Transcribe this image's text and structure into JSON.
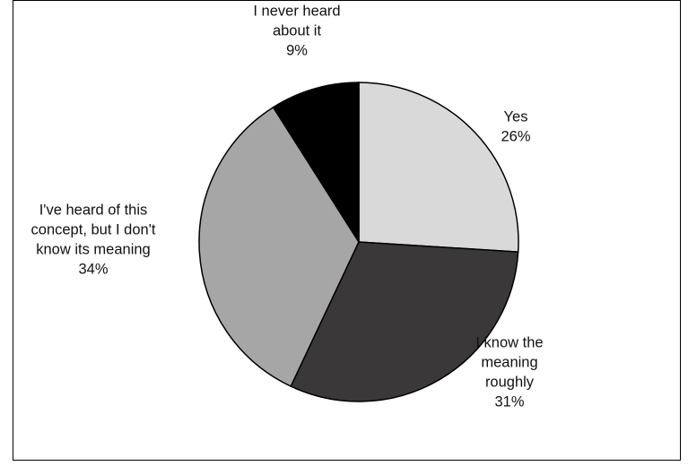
{
  "chart_data": {
    "type": "pie",
    "title": "",
    "start_angle_deg": 0,
    "direction": "clockwise",
    "slices": [
      {
        "label_lines": [
          "Yes"
        ],
        "percent_label": "26%",
        "value": 26,
        "color": "#d9d9d9"
      },
      {
        "label_lines": [
          "I know the",
          "meaning",
          "roughly"
        ],
        "percent_label": "31%",
        "value": 31,
        "color": "#3a3838"
      },
      {
        "label_lines": [
          "I've heard of this",
          "concept, but I don't",
          "know its meaning"
        ],
        "percent_label": "34%",
        "value": 34,
        "color": "#a6a6a6"
      },
      {
        "label_lines": [
          "I never heard",
          "about it"
        ],
        "percent_label": "9%",
        "value": 9,
        "color": "#000000"
      }
    ]
  }
}
